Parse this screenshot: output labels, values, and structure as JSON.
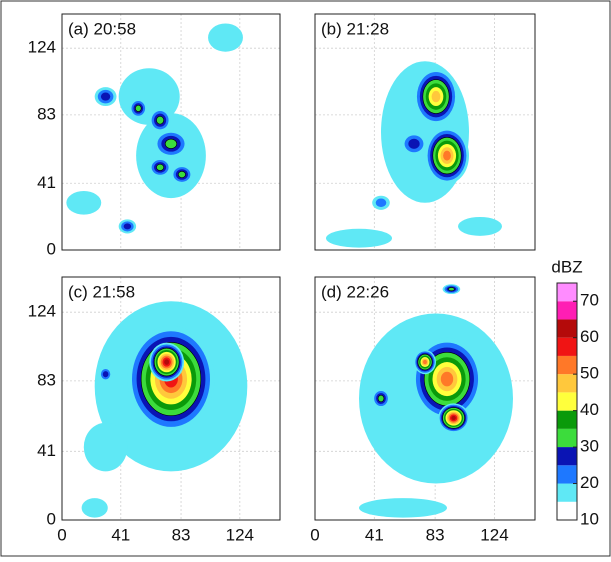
{
  "chart_data": [
    {
      "type": "contour",
      "title": "(a) 20:58",
      "xlim": [
        0,
        152
      ],
      "ylim": [
        0,
        145
      ],
      "xticks": [
        0,
        41,
        83,
        124
      ],
      "yticks": [
        0,
        41,
        83,
        124
      ],
      "x_tick_labels": false,
      "y_tick_labels": true,
      "grid": true
    },
    {
      "type": "contour",
      "title": "(b) 21:28",
      "xlim": [
        0,
        152
      ],
      "ylim": [
        0,
        145
      ],
      "xticks": [
        0,
        41,
        83,
        124
      ],
      "yticks": [
        0,
        41,
        83,
        124
      ],
      "x_tick_labels": false,
      "y_tick_labels": false,
      "grid": true
    },
    {
      "type": "contour",
      "title": "(c) 21:58",
      "xlim": [
        0,
        152
      ],
      "ylim": [
        0,
        145
      ],
      "xticks": [
        0,
        41,
        83,
        124
      ],
      "yticks": [
        0,
        41,
        83,
        124
      ],
      "x_tick_labels": true,
      "y_tick_labels": true,
      "grid": true
    },
    {
      "type": "contour",
      "title": "(d) 22:26",
      "xlim": [
        0,
        152
      ],
      "ylim": [
        0,
        145
      ],
      "xticks": [
        0,
        41,
        83,
        124
      ],
      "yticks": [
        0,
        41,
        83,
        124
      ],
      "x_tick_labels": true,
      "y_tick_labels": false,
      "grid": true
    },
    {
      "type": "colorbar",
      "title": "dBZ",
      "clim": [
        10,
        75
      ],
      "ticks": [
        10,
        20,
        30,
        40,
        50,
        60,
        70
      ],
      "colors": [
        "#ffffff",
        "#5fe8f5",
        "#1e78ff",
        "#0a14b4",
        "#3cdc3c",
        "#0a9a0a",
        "#ffff3c",
        "#ffc83c",
        "#ff7828",
        "#f01414",
        "#b40a0a",
        "#ff1eb4",
        "#ff8cff"
      ]
    }
  ]
}
